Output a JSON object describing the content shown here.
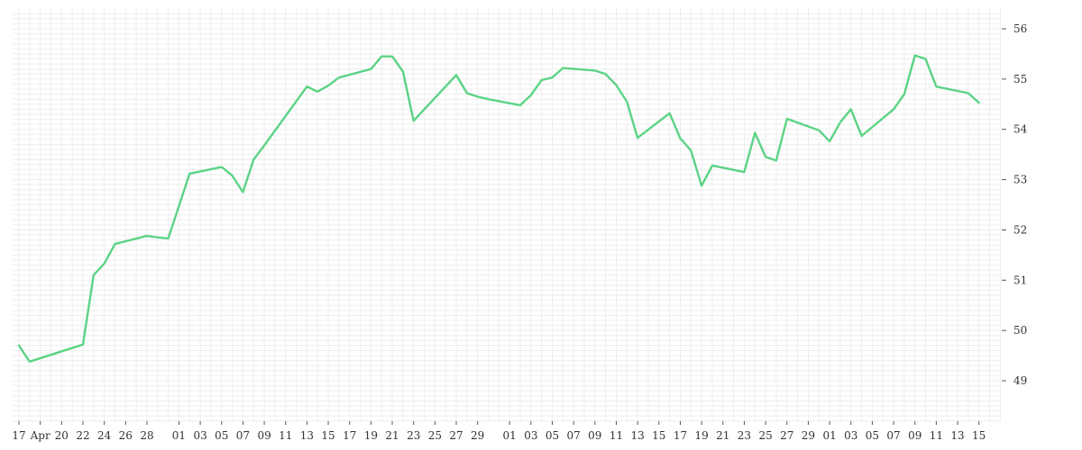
{
  "colors": {
    "line": "#5cd385",
    "grid": "#eeeeee",
    "text": "#333333"
  },
  "chart_data": {
    "type": "line",
    "title": "",
    "xlabel": "",
    "ylabel": "",
    "ylim": [
      48.2,
      56.3
    ],
    "xlim": [
      0,
      92
    ],
    "grid": true,
    "y_axis_side": "right",
    "y_ticks": [
      "49",
      "50",
      "51",
      "52",
      "53",
      "54",
      "55",
      "56"
    ],
    "x_ticks": [
      {
        "i": 0,
        "label": "17"
      },
      {
        "i": 2,
        "label": "Apr"
      },
      {
        "i": 4,
        "label": "20"
      },
      {
        "i": 6,
        "label": "22"
      },
      {
        "i": 8,
        "label": "24"
      },
      {
        "i": 10,
        "label": "26"
      },
      {
        "i": 12,
        "label": "28"
      },
      {
        "i": 15,
        "label": "01"
      },
      {
        "i": 17,
        "label": "03"
      },
      {
        "i": 19,
        "label": "05"
      },
      {
        "i": 21,
        "label": "07"
      },
      {
        "i": 23,
        "label": "09"
      },
      {
        "i": 25,
        "label": "11"
      },
      {
        "i": 27,
        "label": "13"
      },
      {
        "i": 29,
        "label": "15"
      },
      {
        "i": 31,
        "label": "17"
      },
      {
        "i": 33,
        "label": "19"
      },
      {
        "i": 35,
        "label": "21"
      },
      {
        "i": 37,
        "label": "23"
      },
      {
        "i": 39,
        "label": "25"
      },
      {
        "i": 41,
        "label": "27"
      },
      {
        "i": 43,
        "label": "29"
      },
      {
        "i": 46,
        "label": "01"
      },
      {
        "i": 48,
        "label": "03"
      },
      {
        "i": 50,
        "label": "05"
      },
      {
        "i": 52,
        "label": "07"
      },
      {
        "i": 54,
        "label": "09"
      },
      {
        "i": 56,
        "label": "11"
      },
      {
        "i": 58,
        "label": "13"
      },
      {
        "i": 60,
        "label": "15"
      },
      {
        "i": 62,
        "label": "17"
      },
      {
        "i": 64,
        "label": "19"
      },
      {
        "i": 66,
        "label": "21"
      },
      {
        "i": 68,
        "label": "23"
      },
      {
        "i": 70,
        "label": "25"
      },
      {
        "i": 72,
        "label": "27"
      },
      {
        "i": 74,
        "label": "29"
      },
      {
        "i": 76,
        "label": "01"
      },
      {
        "i": 78,
        "label": "03"
      },
      {
        "i": 80,
        "label": "05"
      },
      {
        "i": 82,
        "label": "07"
      },
      {
        "i": 84,
        "label": "09"
      },
      {
        "i": 86,
        "label": "11"
      },
      {
        "i": 88,
        "label": "13"
      },
      {
        "i": 90,
        "label": "15"
      }
    ],
    "series": [
      {
        "points": [
          [
            0,
            49.7
          ],
          [
            1,
            49.38
          ],
          [
            6,
            49.72
          ],
          [
            7,
            51.1
          ],
          [
            8,
            51.33
          ],
          [
            9,
            51.72
          ],
          [
            12,
            51.88
          ],
          [
            13,
            51.85
          ],
          [
            14,
            51.83
          ],
          [
            16,
            53.12
          ],
          [
            19,
            53.25
          ],
          [
            20,
            53.08
          ],
          [
            21,
            52.75
          ],
          [
            22,
            53.4
          ],
          [
            23,
            53.68
          ],
          [
            27,
            54.85
          ],
          [
            28,
            54.75
          ],
          [
            29,
            54.87
          ],
          [
            30,
            55.03
          ],
          [
            33,
            55.2
          ],
          [
            34,
            55.45
          ],
          [
            35,
            55.45
          ],
          [
            36,
            55.15
          ],
          [
            37,
            54.17
          ],
          [
            41,
            55.08
          ],
          [
            42,
            54.72
          ],
          [
            43,
            54.65
          ],
          [
            44,
            54.6
          ],
          [
            47,
            54.48
          ],
          [
            48,
            54.68
          ],
          [
            49,
            54.98
          ],
          [
            50,
            55.03
          ],
          [
            51,
            55.22
          ],
          [
            54,
            55.17
          ],
          [
            55,
            55.1
          ],
          [
            56,
            54.88
          ],
          [
            57,
            54.55
          ],
          [
            58,
            53.83
          ],
          [
            61,
            54.32
          ],
          [
            62,
            53.82
          ],
          [
            63,
            53.58
          ],
          [
            64,
            52.88
          ],
          [
            65,
            53.28
          ],
          [
            68,
            53.15
          ],
          [
            69,
            53.93
          ],
          [
            70,
            53.45
          ],
          [
            71,
            53.38
          ],
          [
            72,
            54.21
          ],
          [
            75,
            53.98
          ],
          [
            76,
            53.76
          ],
          [
            77,
            54.14
          ],
          [
            78,
            54.4
          ],
          [
            79,
            53.87
          ],
          [
            82,
            54.4
          ],
          [
            83,
            54.7
          ],
          [
            84,
            55.47
          ],
          [
            85,
            55.4
          ],
          [
            86,
            54.85
          ],
          [
            89,
            54.72
          ],
          [
            90,
            54.53
          ]
        ]
      }
    ]
  }
}
